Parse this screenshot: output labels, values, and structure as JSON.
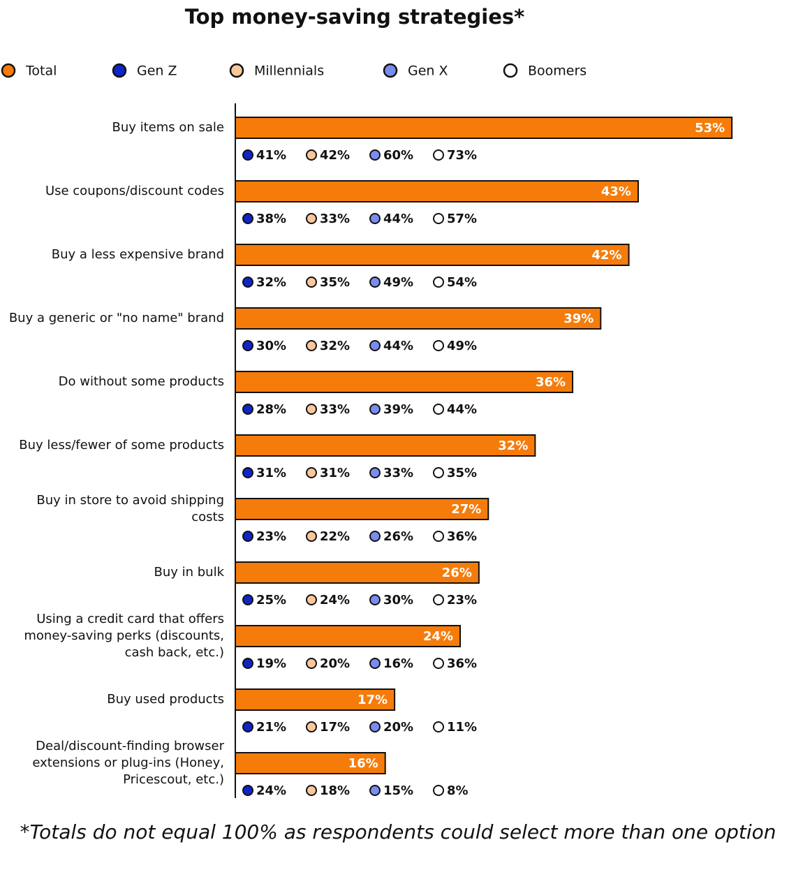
{
  "chart_data": {
    "type": "bar",
    "orientation": "horizontal",
    "title": "Top money-saving strategies*",
    "footnote": "*Totals do not equal 100% as respondents could select more than one option",
    "categories": [
      "Buy items on sale",
      "Use coupons/discount codes",
      "Buy a less expensive brand",
      "Buy a generic or \"no name\" brand",
      "Do without some products",
      "Buy less/fewer of some products",
      "Buy in store to avoid shipping costs",
      "Buy in bulk",
      "Using a credit card that offers money-saving perks (discounts, cash back, etc.)",
      "Buy used products",
      "Deal/discount-finding browser extensions or plug-ins (Honey, Pricescout, etc.)"
    ],
    "xlim": [
      0,
      55
    ],
    "series": [
      {
        "name": "Total",
        "color": "#f57c0a",
        "values": [
          53,
          43,
          42,
          39,
          36,
          32,
          27,
          26,
          24,
          17,
          16
        ],
        "value_labels": [
          "53%",
          "43%",
          "42%",
          "39%",
          "36%",
          "32%",
          "27%",
          "26%",
          "24%",
          "17%",
          "16%"
        ]
      },
      {
        "name": "Gen Z",
        "color": "#0d26c8",
        "values": [
          41,
          38,
          32,
          30,
          28,
          31,
          23,
          25,
          19,
          21,
          24
        ],
        "value_labels": [
          "41%",
          "38%",
          "32%",
          "30%",
          "28%",
          "31%",
          "23%",
          "25%",
          "19%",
          "21%",
          "24%"
        ]
      },
      {
        "name": "Millennials",
        "color": "#f9c79a",
        "values": [
          42,
          33,
          35,
          32,
          33,
          31,
          22,
          24,
          20,
          17,
          18
        ],
        "value_labels": [
          "42%",
          "33%",
          "35%",
          "32%",
          "33%",
          "31%",
          "22%",
          "24%",
          "20%",
          "17%",
          "18%"
        ]
      },
      {
        "name": "Gen X",
        "color": "#7b8cef",
        "values": [
          60,
          44,
          49,
          44,
          39,
          33,
          26,
          30,
          16,
          20,
          15
        ],
        "value_labels": [
          "60%",
          "44%",
          "49%",
          "44%",
          "39%",
          "33%",
          "26%",
          "30%",
          "16%",
          "20%",
          "15%"
        ]
      },
      {
        "name": "Boomers",
        "color": "#ffffff",
        "values": [
          73,
          57,
          54,
          49,
          44,
          35,
          36,
          23,
          36,
          11,
          8
        ],
        "value_labels": [
          "73%",
          "57%",
          "54%",
          "49%",
          "44%",
          "35%",
          "36%",
          "23%",
          "36%",
          "11%",
          "8%"
        ]
      }
    ]
  }
}
